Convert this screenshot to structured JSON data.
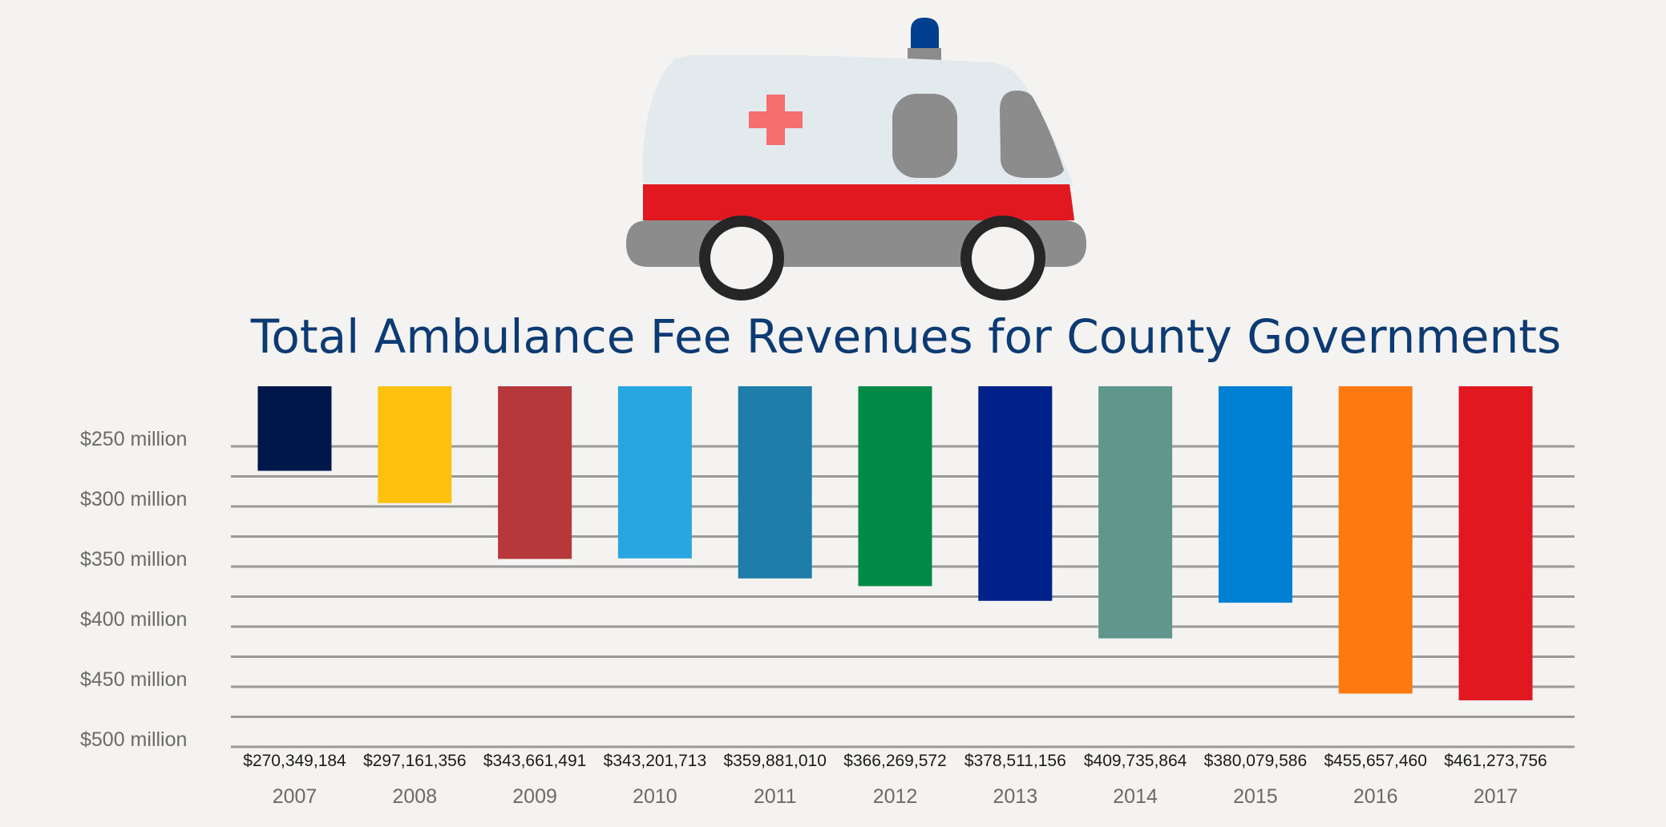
{
  "chart_data": {
    "type": "bar",
    "title": "Total Ambulance Fee Revenues for County Governments",
    "xlabel": "",
    "ylabel": "",
    "orientation": "vertical-inverted",
    "ylim": [
      200000000,
      500000000
    ],
    "grid": true,
    "yticks": [
      {
        "value": 250000000,
        "label": "$250 million"
      },
      {
        "value": 300000000,
        "label": "$300 million"
      },
      {
        "value": 350000000,
        "label": "$350 million"
      },
      {
        "value": 400000000,
        "label": "$400 million"
      },
      {
        "value": 450000000,
        "label": "$450 million"
      },
      {
        "value": 500000000,
        "label": "$500 million"
      }
    ],
    "categories": [
      "2007",
      "2008",
      "2009",
      "2010",
      "2011",
      "2012",
      "2013",
      "2014",
      "2015",
      "2016",
      "2017"
    ],
    "values": [
      270349184,
      297161356,
      343661491,
      343201713,
      359881010,
      366269572,
      378511156,
      409735864,
      380079586,
      455657460,
      461273756
    ],
    "value_labels": [
      "$270,349,184",
      "$297,161,356",
      "$343,661,491",
      "$343,201,713",
      "$359,881,010",
      "$366,269,572",
      "$378,511,156",
      "$409,735,864",
      "$380,079,586",
      "$455,657,460",
      "$461,273,756"
    ],
    "colors": [
      "#00174a",
      "#fec10d",
      "#b7383a",
      "#27a6e0",
      "#1e7ea9",
      "#018a45",
      "#00218a",
      "#60978d",
      "#0080d3",
      "#fe790e",
      "#e21821"
    ]
  },
  "illustration": {
    "icon": "ambulance-icon",
    "body_color": "#e2eaee",
    "stripe_color": "#e21821",
    "cross_color": "#f76e6e",
    "siren_color": "#003f8e",
    "chassis_color": "#8c8c8c",
    "window_color": "#8c8c8c",
    "tire_color": "#262626"
  }
}
